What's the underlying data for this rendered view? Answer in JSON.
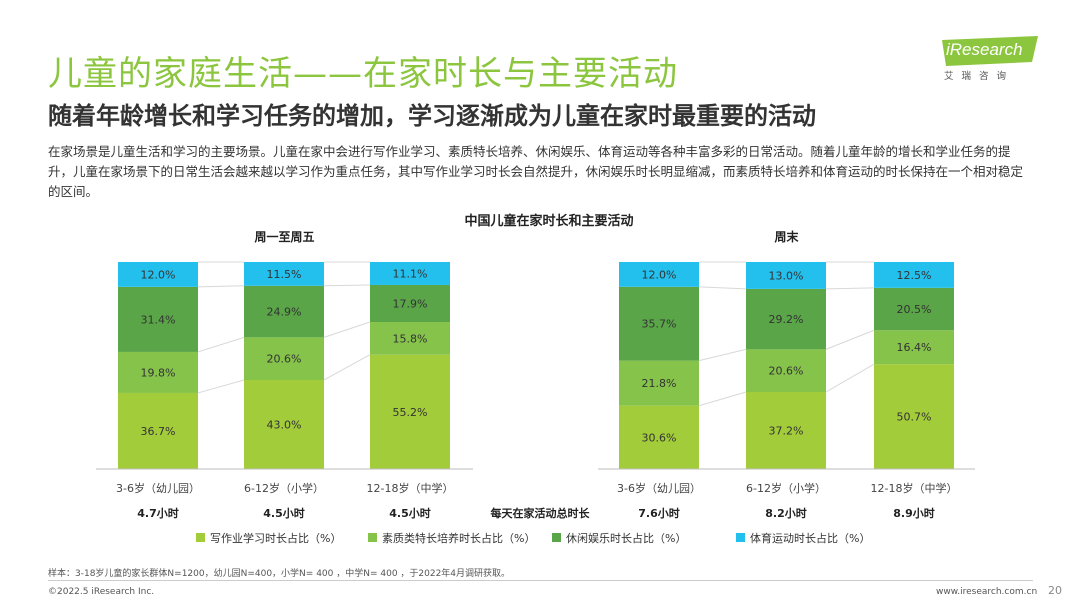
{
  "header": {
    "title": "儿童的家庭生活——在家时长与主要活动",
    "subtitle": "随着年龄增长和学习任务的增加，学习逐渐成为儿童在家时最重要的活动",
    "description": "在家场景是儿童生活和学习的主要场景。儿童在家中会进行写作业学习、素质特长培养、休闲娱乐、体育运动等各种丰富多彩的日常活动。随着儿童年龄的增长和学业任务的提升，儿童在家场景下的日常生活会越来越以学习作为重点任务，其中写作业学习时长会自然提升，休闲娱乐时长明显缩减，而素质特长培养和体育运动的时长保持在一个相对稳定的区间。"
  },
  "logo": {
    "text": "iResearch",
    "sub": "艾瑞咨询"
  },
  "colors": {
    "title_green": "#8cc63f",
    "homework": "#a3cc3a",
    "talent": "#86c34a",
    "leisure": "#5aa548",
    "sports": "#23c0ee"
  },
  "chart_data": {
    "type": "bar",
    "stacked": true,
    "percent": true,
    "title": "中国儿童在家时长和主要活动",
    "total_label": "每天在家活动总时长",
    "legend": [
      {
        "name": "写作业学习时长占比（%）",
        "color": "#a3cc3a"
      },
      {
        "name": "素质类特长培养时长占比（%）",
        "color": "#86c34a"
      },
      {
        "name": "休闲娱乐时长占比（%）",
        "color": "#5aa548"
      },
      {
        "name": "体育运动时长占比（%）",
        "color": "#23c0ee"
      }
    ],
    "panels": [
      {
        "title": "周一至周五",
        "categories": [
          "3-6岁（幼儿园）",
          "6-12岁（小学）",
          "12-18岁（中学）"
        ],
        "totals": [
          "4.7小时",
          "4.5小时",
          "4.5小时"
        ],
        "series": [
          {
            "name": "写作业学习时长占比（%）",
            "values": [
              36.7,
              43.0,
              55.2
            ]
          },
          {
            "name": "素质类特长培养时长占比（%）",
            "values": [
              19.8,
              20.6,
              15.8
            ]
          },
          {
            "name": "休闲娱乐时长占比（%）",
            "values": [
              31.4,
              24.9,
              17.9
            ]
          },
          {
            "name": "体育运动时长占比（%）",
            "values": [
              12.0,
              11.5,
              11.1
            ]
          }
        ]
      },
      {
        "title": "周末",
        "categories": [
          "3-6岁（幼儿园）",
          "6-12岁（小学）",
          "12-18岁（中学）"
        ],
        "totals": [
          "7.6小时",
          "8.2小时",
          "8.9小时"
        ],
        "series": [
          {
            "name": "写作业学习时长占比（%）",
            "values": [
              30.6,
              37.2,
              50.7
            ]
          },
          {
            "name": "素质类特长培养时长占比（%）",
            "values": [
              21.8,
              20.6,
              16.4
            ]
          },
          {
            "name": "休闲娱乐时长占比（%）",
            "values": [
              35.7,
              29.2,
              20.5
            ]
          },
          {
            "name": "体育运动时长占比（%）",
            "values": [
              12.0,
              13.0,
              12.5
            ]
          }
        ]
      }
    ]
  },
  "footer": {
    "sample": "样本：3-18岁儿童的家长群体N=1200，幼儿园N=400，小学N= 400 ，中学N= 400 ，于2022年4月调研获取。",
    "copyright": "©2022.5 iResearch Inc.",
    "website": "www.iresearch.com.cn",
    "page": "20"
  }
}
